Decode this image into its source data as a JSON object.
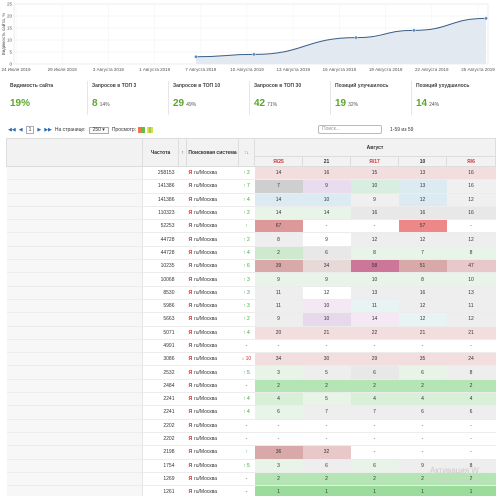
{
  "chart_data": {
    "type": "area",
    "ylabel": "Видимость сайта, %",
    "ylim": [
      0,
      25
    ],
    "yticks": [
      "0",
      "5",
      "10",
      "15",
      "20",
      "25"
    ],
    "xticks": [
      "24 Июля 2019",
      "29 Июля 2019",
      "3 Августа 2019",
      "1 Августа 2019",
      "7 Августа 2019",
      "10 Августа 2019",
      "13 Августа 2019",
      "16 Августа 2019",
      "19 Августа 2019",
      "22 Августа 2019",
      "25 Августа 2019"
    ],
    "x": [
      "7 Августа 2019",
      "12 Августа 2019",
      "19 Августа 2019",
      "23 Августа 2019",
      "28 Августа 2019"
    ],
    "values": [
      3,
      4,
      11,
      14,
      19
    ]
  },
  "stats": [
    {
      "label": "Видимость сайта",
      "value": "19%",
      "pct": ""
    },
    {
      "label": "Запросов в ТОП 3",
      "value": "8",
      "pct": "14%"
    },
    {
      "label": "Запросов в ТОП 10",
      "value": "29",
      "pct": "49%"
    },
    {
      "label": "Запросов в ТОП 30",
      "value": "42",
      "pct": "71%"
    },
    {
      "label": "Позиций улучшилось",
      "value": "19",
      "pct": "32%"
    },
    {
      "label": "Позиций ухудшилось",
      "value": "14",
      "pct": "24%"
    }
  ],
  "toolbar": {
    "page": "1",
    "per_page_label": "На странице:",
    "per_page": "250",
    "view_label": "Просмотр:",
    "search_placeholder": "Поиск...",
    "range": "1-59 из 59"
  },
  "table": {
    "h_freq": "Частота",
    "h_engine": "Поисковая система",
    "h_month": "Август",
    "days": [
      "Я/25",
      "21",
      "Я/17",
      "10",
      "Я/6"
    ],
    "engine_region": "ru/Москва",
    "rows": [
      {
        "freq": "258153",
        "chg": "↑ 2",
        "dir": "up",
        "c": [
          [
            "14",
            "#f2dede"
          ],
          [
            "16",
            "#f2dede"
          ],
          [
            "15",
            "#f2dede"
          ],
          [
            "13",
            "#f2dede"
          ],
          [
            "16",
            "#f2dede"
          ]
        ]
      },
      {
        "freq": "141386",
        "chg": "↑ 7",
        "dir": "up",
        "c": [
          [
            "7",
            "#cfcfcf"
          ],
          [
            "9",
            "#e9dcef"
          ],
          [
            "10",
            "#d8eede"
          ],
          [
            "13",
            "#dceaf2"
          ],
          [
            "16",
            "#f0f0f0"
          ]
        ]
      },
      {
        "freq": "141386",
        "chg": "↑ 4",
        "dir": "up",
        "c": [
          [
            "14",
            "#dceaf2"
          ],
          [
            "10",
            "#dceaf2"
          ],
          [
            "9",
            "#f0f0f0"
          ],
          [
            "12",
            "#dceaf2"
          ],
          [
            "12",
            "#f0f0f0"
          ]
        ]
      },
      {
        "freq": "110323",
        "chg": "↑ 2",
        "dir": "up",
        "c": [
          [
            "14",
            "#e8f4e8"
          ],
          [
            "14",
            "#e8f4e8"
          ],
          [
            "16",
            "#e8e8e8"
          ],
          [
            "16",
            "#e8e8e8"
          ],
          [
            "16",
            "#e8e8e8"
          ]
        ]
      },
      {
        "freq": "52253",
        "chg": "↑",
        "dir": "up",
        "c": [
          [
            "67",
            "#dd9999"
          ],
          [
            "-",
            ""
          ],
          [
            "-",
            ""
          ],
          [
            "57",
            "#e88"
          ],
          [
            "-",
            ""
          ]
        ]
      },
      {
        "freq": "44728",
        "chg": "↑ 2",
        "dir": "up",
        "c": [
          [
            "8",
            "#eee"
          ],
          [
            "9",
            "#fff"
          ],
          [
            "12",
            "#eee"
          ],
          [
            "12",
            "#eee"
          ],
          [
            "12",
            "#eee"
          ]
        ]
      },
      {
        "freq": "44728",
        "chg": "↑ 4",
        "dir": "up",
        "c": [
          [
            "2",
            "#cfe9cf"
          ],
          [
            "6",
            "#e8e8e8"
          ],
          [
            "8",
            "#e8f4e8"
          ],
          [
            "7",
            "#e8f4e8"
          ],
          [
            "8",
            "#e8f4e8"
          ]
        ]
      },
      {
        "freq": "10235",
        "chg": "↑ 6",
        "dir": "up",
        "c": [
          [
            "39",
            "#d9a9a9"
          ],
          [
            "34",
            "#e8d9d9"
          ],
          [
            "58",
            "#c79"
          ],
          [
            "51",
            "#d9a9a9"
          ],
          [
            "47",
            "#e8c8c8"
          ]
        ]
      },
      {
        "freq": "10068",
        "chg": "↑ 3",
        "dir": "up",
        "c": [
          [
            "9",
            "#e8f4e8"
          ],
          [
            "9",
            "#e8f4e8"
          ],
          [
            "10",
            "#e8f4e8"
          ],
          [
            "8",
            "#e8f4e8"
          ],
          [
            "10",
            "#e8f4e8"
          ]
        ]
      },
      {
        "freq": "8530",
        "chg": "↑ 3",
        "dir": "up",
        "c": [
          [
            "11",
            "#eee"
          ],
          [
            "12",
            "#fff"
          ],
          [
            "13",
            "#eee"
          ],
          [
            "16",
            "#eee"
          ],
          [
            "13",
            "#eee"
          ]
        ]
      },
      {
        "freq": "5986",
        "chg": "↑ 3",
        "dir": "up",
        "c": [
          [
            "11",
            "#eee"
          ],
          [
            "10",
            "#f4e8f4"
          ],
          [
            "11",
            "#e8f4f4"
          ],
          [
            "12",
            "#eee"
          ],
          [
            "11",
            "#eee"
          ]
        ]
      },
      {
        "freq": "5663",
        "chg": "↑ 2",
        "dir": "up",
        "c": [
          [
            "9",
            "#eee"
          ],
          [
            "10",
            "#e8d8ec"
          ],
          [
            "14",
            "#f4e8f4"
          ],
          [
            "12",
            "#e8f4f4"
          ],
          [
            "12",
            "#eee"
          ]
        ]
      },
      {
        "freq": "5071",
        "chg": "↑ 4",
        "dir": "up",
        "c": [
          [
            "20",
            "#f2dede"
          ],
          [
            "21",
            "#f2dede"
          ],
          [
            "22",
            "#f2dede"
          ],
          [
            "21",
            "#f2dede"
          ],
          [
            "21",
            "#f2dede"
          ]
        ]
      },
      {
        "freq": "4991",
        "chg": "-",
        "dir": "",
        "c": [
          [
            "-",
            ""
          ],
          [
            "-",
            ""
          ],
          [
            "-",
            ""
          ],
          [
            "-",
            ""
          ],
          [
            "-",
            ""
          ]
        ]
      },
      {
        "freq": "3086",
        "chg": "↓ 10",
        "dir": "dn",
        "c": [
          [
            "34",
            "#f2dede"
          ],
          [
            "30",
            "#f2dede"
          ],
          [
            "29",
            "#f2dede"
          ],
          [
            "35",
            "#f2dede"
          ],
          [
            "24",
            "#f2dede"
          ]
        ]
      },
      {
        "freq": "2532",
        "chg": "↑ 5",
        "dir": "up",
        "c": [
          [
            "3",
            "#e8f4e8"
          ],
          [
            "5",
            "#eee"
          ],
          [
            "6",
            "#e8e8e8"
          ],
          [
            "6",
            "#e8f4e8"
          ],
          [
            "8",
            "#eee"
          ]
        ]
      },
      {
        "freq": "2484",
        "chg": "-",
        "dir": "",
        "c": [
          [
            "2",
            "#b5e5b5"
          ],
          [
            "2",
            "#b5e5b5"
          ],
          [
            "2",
            "#b5e5b5"
          ],
          [
            "2",
            "#b5e5b5"
          ],
          [
            "2",
            "#b5e5b5"
          ]
        ]
      },
      {
        "freq": "2241",
        "chg": "↑ 4",
        "dir": "up",
        "c": [
          [
            "4",
            "#d8efd8"
          ],
          [
            "5",
            "#e8f4e8"
          ],
          [
            "4",
            "#d8efd8"
          ],
          [
            "4",
            "#d8efd8"
          ],
          [
            "4",
            "#d8efd8"
          ]
        ]
      },
      {
        "freq": "2241",
        "chg": "↑ 4",
        "dir": "up",
        "c": [
          [
            "6",
            "#e8f4e8"
          ],
          [
            "7",
            "#eee"
          ],
          [
            "7",
            "#eee"
          ],
          [
            "6",
            "#eee"
          ],
          [
            "6",
            "#eee"
          ]
        ]
      },
      {
        "freq": "2202",
        "chg": "-",
        "dir": "",
        "c": [
          [
            "-",
            ""
          ],
          [
            "-",
            ""
          ],
          [
            "-",
            ""
          ],
          [
            "-",
            ""
          ],
          [
            "-",
            ""
          ]
        ]
      },
      {
        "freq": "2202",
        "chg": "-",
        "dir": "",
        "c": [
          [
            "-",
            ""
          ],
          [
            "-",
            ""
          ],
          [
            "-",
            ""
          ],
          [
            "-",
            ""
          ],
          [
            "-",
            ""
          ]
        ]
      },
      {
        "freq": "2198",
        "chg": "↑",
        "dir": "up",
        "c": [
          [
            "36",
            "#d9a9a9"
          ],
          [
            "32",
            "#e8c8c8"
          ],
          [
            "-",
            ""
          ],
          [
            "-",
            ""
          ],
          [
            "-",
            ""
          ]
        ]
      },
      {
        "freq": "1754",
        "chg": "↑ 5",
        "dir": "up",
        "c": [
          [
            "3",
            "#e8f4e8"
          ],
          [
            "6",
            "#eee"
          ],
          [
            "6",
            "#e8f4e8"
          ],
          [
            "9",
            "#eee"
          ],
          [
            "8",
            "#eee"
          ]
        ]
      },
      {
        "freq": "1269",
        "chg": "-",
        "dir": "",
        "c": [
          [
            "2",
            "#b5e5b5"
          ],
          [
            "2",
            "#b5e5b5"
          ],
          [
            "2",
            "#b5e5b5"
          ],
          [
            "2",
            "#b5e5b5"
          ],
          [
            "2",
            "#b5e5b5"
          ]
        ]
      },
      {
        "freq": "1261",
        "chg": "-",
        "dir": "",
        "c": [
          [
            "1",
            "#9bdb9b"
          ],
          [
            "1",
            "#9bdb9b"
          ],
          [
            "1",
            "#9bdb9b"
          ],
          [
            "1",
            "#9bdb9b"
          ],
          [
            "1",
            "#9bdb9b"
          ]
        ]
      }
    ]
  },
  "watermark": {
    "line1": "Активация W",
    "line2": "Чтобы активировать"
  }
}
